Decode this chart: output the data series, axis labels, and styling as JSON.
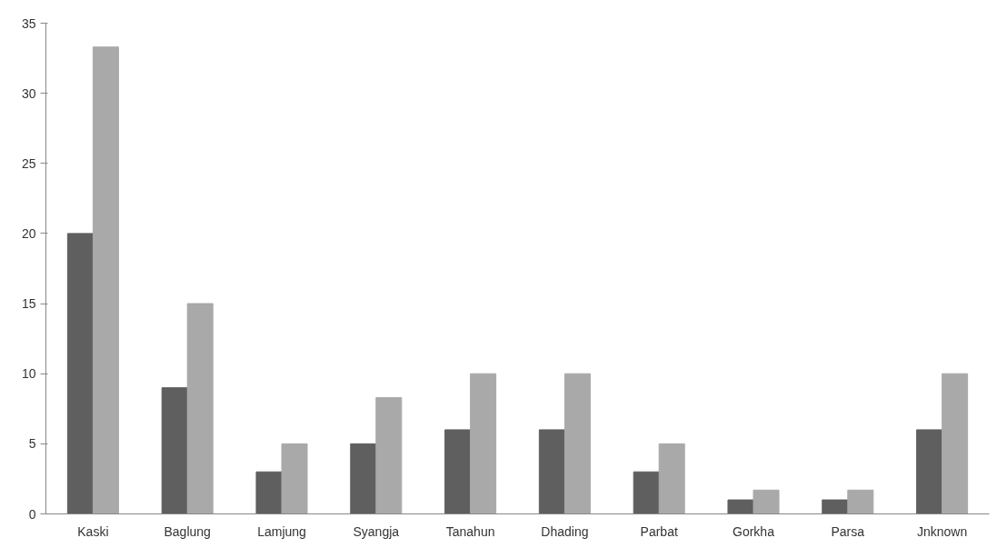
{
  "chart_data": {
    "type": "bar",
    "categories": [
      "Kaski",
      "Baglung",
      "Lamjung",
      "Syangja",
      "Tanahun",
      "Dhading",
      "Parbat",
      "Gorkha",
      "Parsa",
      "Jnknown"
    ],
    "series": [
      {
        "color": "#5f5f5f",
        "values": [
          20,
          9,
          3,
          5,
          6,
          6,
          3,
          1,
          1,
          6
        ]
      },
      {
        "color": "#a9a9a9",
        "values": [
          33.3,
          15,
          5,
          8.3,
          10,
          10,
          5,
          1.7,
          1.7,
          10
        ]
      }
    ],
    "ylim": [
      0,
      35
    ],
    "yticks": [
      0,
      5,
      10,
      15,
      20,
      25,
      30,
      35
    ],
    "grid": false
  }
}
